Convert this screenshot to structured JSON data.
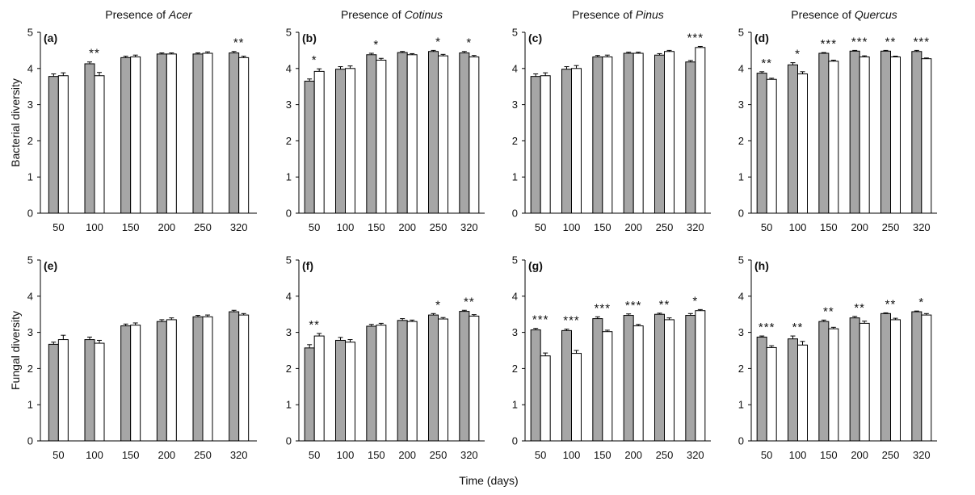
{
  "figure": {
    "col_titles": [
      {
        "prefix": "Presence of ",
        "genus": "Acer"
      },
      {
        "prefix": "Presence of ",
        "genus": "Cotinus"
      },
      {
        "prefix": "Presence of ",
        "genus": "Pinus"
      },
      {
        "prefix": "Presence of ",
        "genus": "Quercus"
      }
    ],
    "row_ylabels": [
      "Bacterial diversity",
      "Fungal diversity"
    ],
    "xlabel": "Time (days)",
    "colors": {
      "absent": "#a6a6a6",
      "present": "#ffffff",
      "edge": "#000000"
    }
  },
  "chart_data": [
    {
      "panel": "(a)",
      "type": "bar",
      "row": "Bacterial diversity",
      "categories": [
        "50",
        "100",
        "150",
        "200",
        "250",
        "320"
      ],
      "ylim": [
        0,
        5
      ],
      "yticks": [
        0,
        1,
        2,
        3,
        4,
        5
      ],
      "series": [
        {
          "values": [
            3.78,
            4.13,
            4.3,
            4.4,
            4.4,
            4.43
          ],
          "errors": [
            0.07,
            0.05,
            0.04,
            0.03,
            0.03,
            0.04
          ]
        },
        {
          "values": [
            3.8,
            3.8,
            4.32,
            4.4,
            4.42,
            4.3
          ],
          "errors": [
            0.08,
            0.09,
            0.05,
            0.03,
            0.04,
            0.04
          ]
        }
      ],
      "sig": [
        "",
        "**",
        "",
        "",
        "",
        "**"
      ]
    },
    {
      "panel": "(b)",
      "type": "bar",
      "row": "Bacterial diversity",
      "categories": [
        "50",
        "100",
        "150",
        "200",
        "250",
        "320"
      ],
      "ylim": [
        0,
        5
      ],
      "yticks": [
        0,
        1,
        2,
        3,
        4,
        5
      ],
      "series": [
        {
          "values": [
            3.65,
            3.98,
            4.38,
            4.44,
            4.47,
            4.43
          ],
          "errors": [
            0.06,
            0.07,
            0.04,
            0.03,
            0.03,
            0.04
          ]
        },
        {
          "values": [
            3.92,
            4.0,
            4.23,
            4.38,
            4.35,
            4.32
          ],
          "errors": [
            0.07,
            0.07,
            0.05,
            0.03,
            0.04,
            0.04
          ]
        }
      ],
      "sig": [
        "*",
        "",
        "*",
        "",
        "*",
        "*"
      ]
    },
    {
      "panel": "(c)",
      "type": "bar",
      "row": "Bacterial diversity",
      "categories": [
        "50",
        "100",
        "150",
        "200",
        "250",
        "320"
      ],
      "ylim": [
        0,
        5
      ],
      "yticks": [
        0,
        1,
        2,
        3,
        4,
        5
      ],
      "series": [
        {
          "values": [
            3.78,
            3.98,
            4.32,
            4.42,
            4.37,
            4.18
          ],
          "errors": [
            0.07,
            0.07,
            0.04,
            0.03,
            0.04,
            0.04
          ]
        },
        {
          "values": [
            3.8,
            4.0,
            4.32,
            4.42,
            4.47,
            4.58
          ],
          "errors": [
            0.08,
            0.08,
            0.05,
            0.03,
            0.03,
            0.03
          ]
        }
      ],
      "sig": [
        "",
        "",
        "",
        "",
        "",
        "***"
      ]
    },
    {
      "panel": "(d)",
      "type": "bar",
      "row": "Bacterial diversity",
      "categories": [
        "50",
        "100",
        "150",
        "200",
        "250",
        "320"
      ],
      "ylim": [
        0,
        5
      ],
      "yticks": [
        0,
        1,
        2,
        3,
        4,
        5
      ],
      "series": [
        {
          "values": [
            3.87,
            4.1,
            4.42,
            4.48,
            4.48,
            4.47
          ],
          "errors": [
            0.04,
            0.06,
            0.02,
            0.02,
            0.02,
            0.03
          ]
        },
        {
          "values": [
            3.7,
            3.85,
            4.2,
            4.32,
            4.32,
            4.27
          ],
          "errors": [
            0.03,
            0.06,
            0.03,
            0.03,
            0.02,
            0.02
          ]
        }
      ],
      "sig": [
        "**",
        "*",
        "***",
        "***",
        "**",
        "***"
      ]
    },
    {
      "panel": "(e)",
      "type": "bar",
      "row": "Fungal diversity",
      "categories": [
        "50",
        "100",
        "150",
        "200",
        "250",
        "320"
      ],
      "ylim": [
        0,
        5
      ],
      "yticks": [
        0,
        1,
        2,
        3,
        4,
        5
      ],
      "series": [
        {
          "values": [
            2.67,
            2.8,
            3.18,
            3.3,
            3.43,
            3.57
          ],
          "errors": [
            0.06,
            0.07,
            0.05,
            0.05,
            0.04,
            0.04
          ]
        },
        {
          "values": [
            2.8,
            2.7,
            3.2,
            3.35,
            3.43,
            3.48
          ],
          "errors": [
            0.12,
            0.08,
            0.06,
            0.05,
            0.05,
            0.04
          ]
        }
      ],
      "sig": [
        "",
        "",
        "",
        "",
        "",
        ""
      ]
    },
    {
      "panel": "(f)",
      "type": "bar",
      "row": "Fungal diversity",
      "categories": [
        "50",
        "100",
        "150",
        "200",
        "250",
        "320"
      ],
      "ylim": [
        0,
        5
      ],
      "yticks": [
        0,
        1,
        2,
        3,
        4,
        5
      ],
      "series": [
        {
          "values": [
            2.57,
            2.78,
            3.17,
            3.33,
            3.48,
            3.58
          ],
          "errors": [
            0.09,
            0.08,
            0.05,
            0.05,
            0.04,
            0.03
          ]
        },
        {
          "values": [
            2.9,
            2.73,
            3.2,
            3.3,
            3.37,
            3.45
          ],
          "errors": [
            0.07,
            0.07,
            0.05,
            0.04,
            0.04,
            0.04
          ]
        }
      ],
      "sig": [
        "**",
        "",
        "",
        "",
        "*",
        "**"
      ]
    },
    {
      "panel": "(g)",
      "type": "bar",
      "row": "Fungal diversity",
      "categories": [
        "50",
        "100",
        "150",
        "200",
        "250",
        "320"
      ],
      "ylim": [
        0,
        5
      ],
      "yticks": [
        0,
        1,
        2,
        3,
        4,
        5
      ],
      "series": [
        {
          "values": [
            3.07,
            3.05,
            3.38,
            3.47,
            3.5,
            3.47
          ],
          "errors": [
            0.04,
            0.04,
            0.05,
            0.04,
            0.03,
            0.05
          ]
        },
        {
          "values": [
            2.35,
            2.42,
            3.02,
            3.18,
            3.35,
            3.6
          ],
          "errors": [
            0.08,
            0.08,
            0.04,
            0.04,
            0.05,
            0.03
          ]
        }
      ],
      "sig": [
        "***",
        "***",
        "***",
        "***",
        "**",
        "*"
      ]
    },
    {
      "panel": "(h)",
      "type": "bar",
      "row": "Fungal diversity",
      "categories": [
        "50",
        "100",
        "150",
        "200",
        "250",
        "320"
      ],
      "ylim": [
        0,
        5
      ],
      "yticks": [
        0,
        1,
        2,
        3,
        4,
        5
      ],
      "series": [
        {
          "values": [
            2.87,
            2.82,
            3.3,
            3.4,
            3.52,
            3.57
          ],
          "errors": [
            0.03,
            0.08,
            0.04,
            0.04,
            0.02,
            0.02
          ]
        },
        {
          "values": [
            2.58,
            2.65,
            3.1,
            3.25,
            3.35,
            3.48
          ],
          "errors": [
            0.05,
            0.1,
            0.04,
            0.06,
            0.04,
            0.04
          ]
        }
      ],
      "sig": [
        "***",
        "**",
        "**",
        "**",
        "**",
        "*"
      ]
    }
  ]
}
